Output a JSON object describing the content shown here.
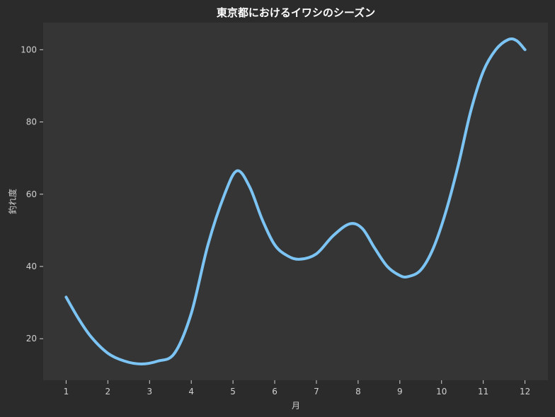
{
  "chart_data": {
    "type": "line",
    "title": "東京都におけるイワシのシーズン",
    "xlabel": "月",
    "ylabel": "釣れ度",
    "x": [
      1,
      2,
      3,
      4,
      5,
      6,
      7,
      8,
      9,
      10,
      11,
      12
    ],
    "xticks": [
      "1",
      "2",
      "3",
      "4",
      "5",
      "6",
      "7",
      "8",
      "9",
      "10",
      "11",
      "12"
    ],
    "yticks": [
      "20",
      "40",
      "60",
      "80",
      "100"
    ],
    "xlim": [
      0.45,
      12.55
    ],
    "ylim": [
      8.5,
      107.5
    ],
    "series": [
      {
        "points": [
          [
            1.0,
            31.5
          ],
          [
            1.3,
            25.5
          ],
          [
            1.6,
            20.5
          ],
          [
            2.0,
            16.0
          ],
          [
            2.4,
            13.8
          ],
          [
            2.8,
            13.0
          ],
          [
            3.2,
            13.8
          ],
          [
            3.6,
            16.0
          ],
          [
            4.0,
            27.0
          ],
          [
            4.4,
            46.0
          ],
          [
            4.8,
            60.0
          ],
          [
            5.1,
            66.5
          ],
          [
            5.4,
            62.0
          ],
          [
            5.7,
            53.0
          ],
          [
            6.0,
            46.0
          ],
          [
            6.3,
            43.0
          ],
          [
            6.6,
            42.0
          ],
          [
            7.0,
            43.5
          ],
          [
            7.4,
            48.5
          ],
          [
            7.8,
            51.8
          ],
          [
            8.1,
            50.5
          ],
          [
            8.4,
            45.0
          ],
          [
            8.7,
            40.0
          ],
          [
            9.0,
            37.5
          ],
          [
            9.2,
            37.2
          ],
          [
            9.5,
            39.0
          ],
          [
            9.8,
            45.0
          ],
          [
            10.1,
            55.0
          ],
          [
            10.4,
            68.0
          ],
          [
            10.7,
            83.0
          ],
          [
            11.0,
            94.0
          ],
          [
            11.3,
            100.0
          ],
          [
            11.6,
            102.8
          ],
          [
            11.8,
            102.5
          ],
          [
            12.0,
            100.0
          ]
        ]
      }
    ],
    "colors": {
      "figure_bg": "#2b2b2b",
      "plot_bg": "#353535",
      "line": "#7cc4f4",
      "text": "#d0d0d0",
      "title": "#ffffff"
    },
    "grid": false
  }
}
